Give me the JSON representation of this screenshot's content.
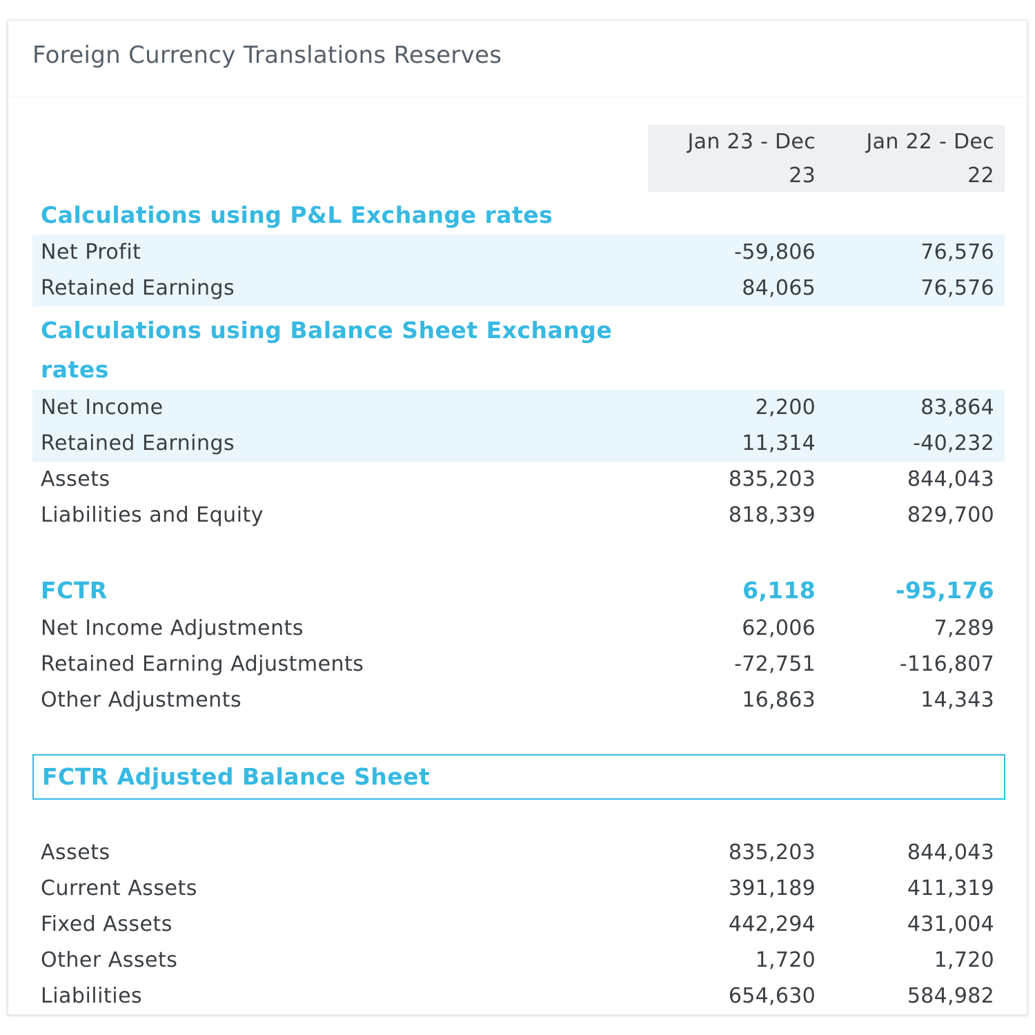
{
  "title": "Foreign Currency Translations Reserves",
  "columns": [
    "Jan 23 - Dec 23",
    "Jan 22 - Dec 22"
  ],
  "sections": {
    "pl": {
      "heading": "Calculations using P&L Exchange rates",
      "rows": [
        {
          "label": "Net Profit",
          "v1": "-59,806",
          "v2": "76,576"
        },
        {
          "label": "Retained Earnings",
          "v1": "84,065",
          "v2": "76,576"
        }
      ]
    },
    "bs": {
      "heading": "Calculations using Balance Sheet Exchange rates",
      "rows": [
        {
          "label": "Net Income",
          "v1": "2,200",
          "v2": "83,864"
        },
        {
          "label": "Retained Earnings",
          "v1": "11,314",
          "v2": "-40,232"
        },
        {
          "label": "Assets",
          "v1": "835,203",
          "v2": "844,043"
        },
        {
          "label": "Liabilities and Equity",
          "v1": "818,339",
          "v2": "829,700"
        }
      ]
    },
    "fctr": {
      "total": {
        "label": "FCTR",
        "v1": "6,118",
        "v2": "-95,176"
      },
      "rows": [
        {
          "label": "Net Income Adjustments",
          "v1": "62,006",
          "v2": "7,289"
        },
        {
          "label": "Retained Earning Adjustments",
          "v1": "-72,751",
          "v2": "-116,807"
        },
        {
          "label": "Other Adjustments",
          "v1": "16,863",
          "v2": "14,343"
        }
      ]
    },
    "adjusted": {
      "heading": "FCTR Adjusted Balance Sheet",
      "rows": [
        {
          "label": "Assets",
          "v1": "835,203",
          "v2": "844,043"
        },
        {
          "label": "Current Assets",
          "v1": "391,189",
          "v2": "411,319"
        },
        {
          "label": "Fixed Assets",
          "v1": "442,294",
          "v2": "431,004"
        },
        {
          "label": "Other Assets",
          "v1": "1,720",
          "v2": "1,720"
        },
        {
          "label": "Liabilities",
          "v1": "654,630",
          "v2": "584,982"
        }
      ]
    }
  },
  "colors": {
    "accent": "#36b9e3",
    "highlight_row": "#e9f6fc",
    "header_bg": "#eef0f3",
    "text": "#3a3f44",
    "title_text": "#55606b"
  }
}
